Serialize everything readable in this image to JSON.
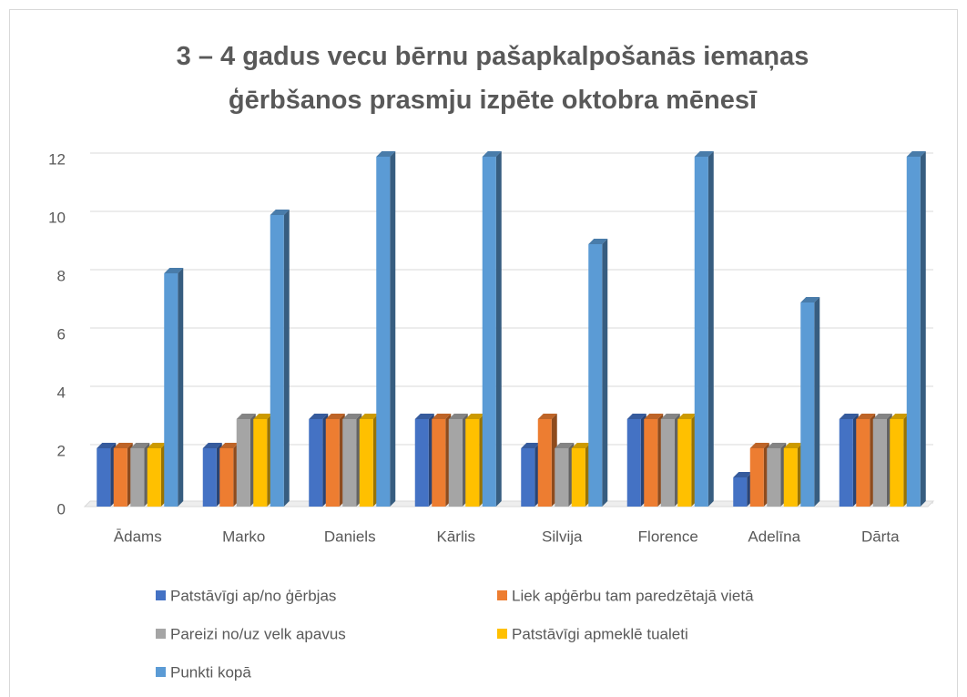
{
  "chart_data": {
    "type": "bar3d",
    "title": "3 – 4 gadus vecu bērnu pašapkalpošanās iemaņas ģērbšanos prasmju izpēte oktobra mēnesī",
    "categories": [
      "Ādams",
      "Marko",
      "Daniels",
      "Kārlis",
      "Silvija",
      "Florence",
      "Adelīna",
      "Dārta"
    ],
    "series": [
      {
        "name": "Patstāvīgi ap/no ģērbjas",
        "color": "#4472c4",
        "values": [
          2,
          2,
          3,
          3,
          2,
          3,
          1,
          3
        ]
      },
      {
        "name": "Liek apģērbu tam paredzētajā vietā",
        "color": "#ed7d31",
        "values": [
          2,
          2,
          3,
          3,
          3,
          3,
          2,
          3
        ]
      },
      {
        "name": "Pareizi no/uz velk apavus",
        "color": "#a5a5a5",
        "values": [
          2,
          3,
          3,
          3,
          2,
          3,
          2,
          3
        ]
      },
      {
        "name": "Patstāvīgi apmeklē tualeti",
        "color": "#ffc000",
        "values": [
          2,
          3,
          3,
          3,
          2,
          3,
          2,
          3
        ]
      },
      {
        "name": "Punkti kopā",
        "color": "#5b9bd5",
        "values": [
          8,
          10,
          12,
          12,
          9,
          12,
          7,
          12
        ]
      }
    ],
    "ylim": [
      0,
      12
    ],
    "yticks": [
      0,
      2,
      4,
      6,
      8,
      10,
      12
    ],
    "grid": true,
    "legend": "bottom"
  }
}
